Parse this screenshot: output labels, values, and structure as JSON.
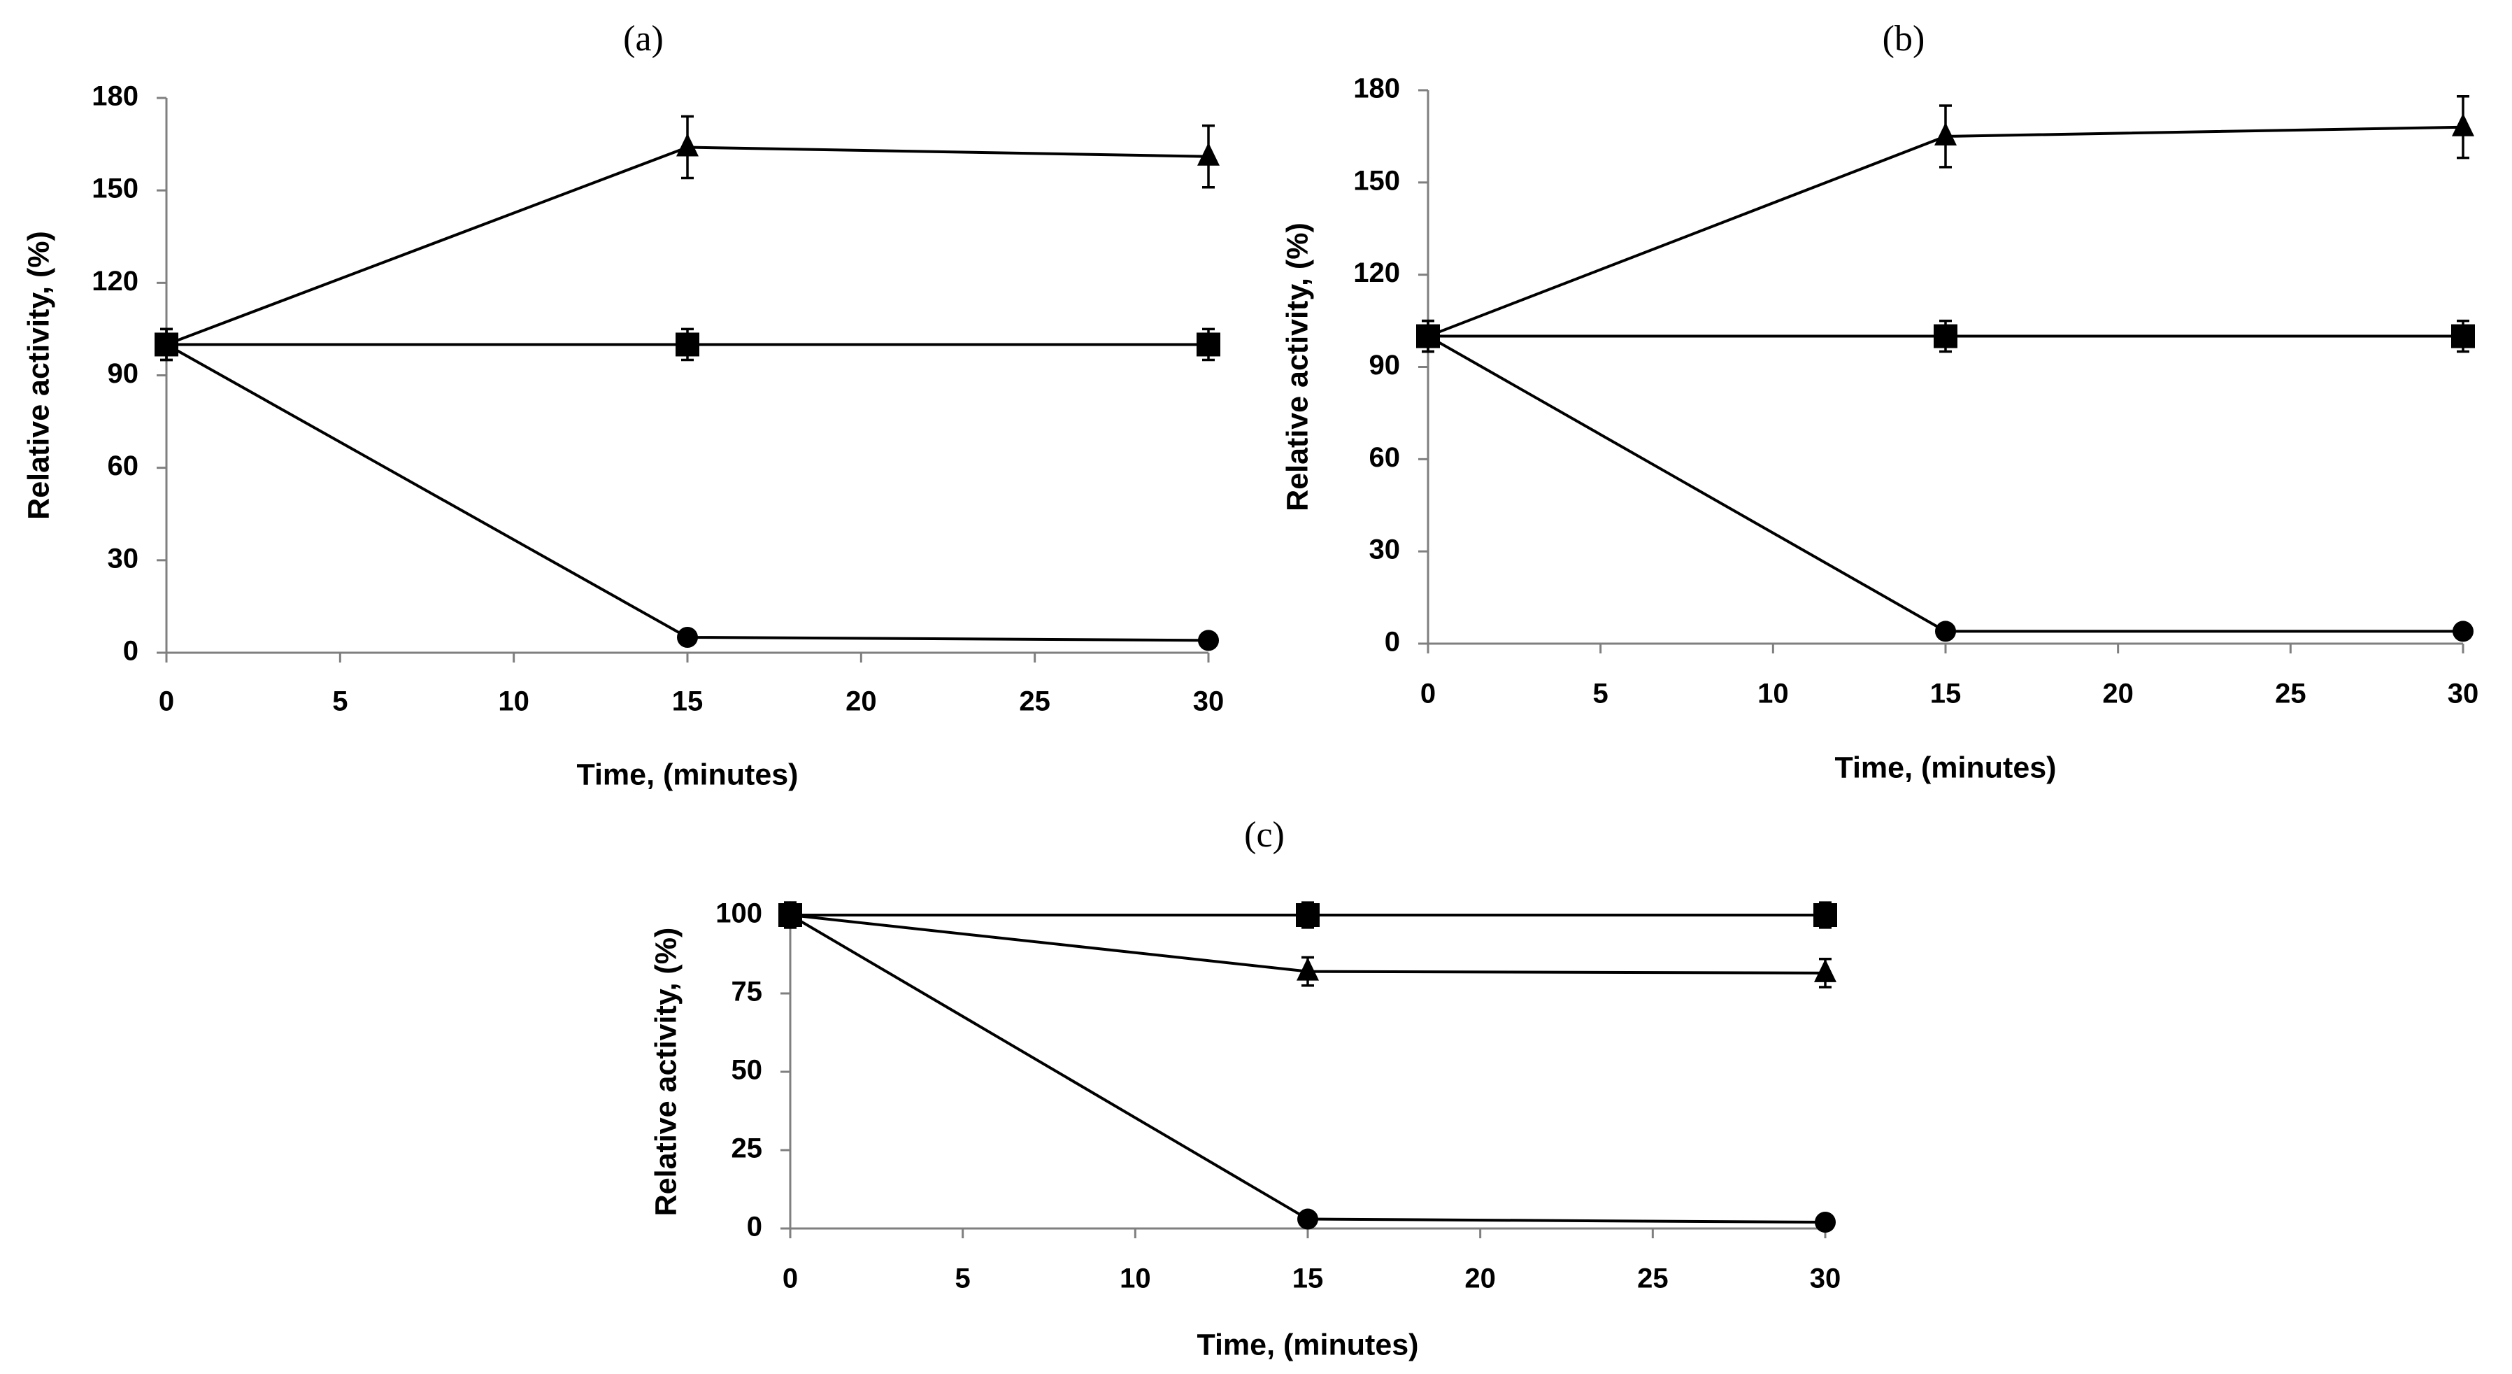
{
  "figure": {
    "description_free": true
  },
  "chart_data": [
    {
      "type": "line",
      "panel_label": "(a)",
      "xlabel": "Time, (minutes)",
      "ylabel": "Relative activity, (%)",
      "xlim": [
        0,
        30
      ],
      "ylim": [
        0,
        180
      ],
      "xticks": [
        0,
        5,
        10,
        15,
        20,
        25,
        30
      ],
      "yticks": [
        0,
        30,
        60,
        90,
        120,
        150,
        180
      ],
      "series": [
        {
          "name": "triangle",
          "marker": "triangle",
          "x": [
            0,
            15,
            30
          ],
          "y": [
            100,
            164,
            161
          ],
          "err": [
            5,
            10,
            10
          ]
        },
        {
          "name": "square",
          "marker": "square",
          "x": [
            0,
            15,
            30
          ],
          "y": [
            100,
            100,
            100
          ],
          "err": [
            5,
            5,
            5
          ]
        },
        {
          "name": "circle",
          "marker": "circle",
          "x": [
            0,
            15,
            30
          ],
          "y": [
            100,
            5,
            4
          ],
          "err": [
            0,
            0,
            0
          ]
        }
      ]
    },
    {
      "type": "line",
      "panel_label": "(b)",
      "xlabel": "Time, (minutes)",
      "ylabel": "Relative activity, (%)",
      "xlim": [
        0,
        30
      ],
      "ylim": [
        0,
        180
      ],
      "xticks": [
        0,
        5,
        10,
        15,
        20,
        25,
        30
      ],
      "yticks": [
        0,
        30,
        60,
        90,
        120,
        150,
        180
      ],
      "series": [
        {
          "name": "triangle",
          "marker": "triangle",
          "x": [
            0,
            15,
            30
          ],
          "y": [
            100,
            165,
            168
          ],
          "err": [
            5,
            10,
            10
          ]
        },
        {
          "name": "square",
          "marker": "square",
          "x": [
            0,
            15,
            30
          ],
          "y": [
            100,
            100,
            100
          ],
          "err": [
            5,
            5,
            5
          ]
        },
        {
          "name": "circle",
          "marker": "circle",
          "x": [
            0,
            15,
            30
          ],
          "y": [
            100,
            4,
            4
          ],
          "err": [
            0,
            0,
            0
          ]
        }
      ]
    },
    {
      "type": "line",
      "panel_label": "(c)",
      "xlabel": "Time, (minutes)",
      "ylabel": "Relative activity, (%)",
      "xlim": [
        0,
        30
      ],
      "ylim": [
        0,
        100
      ],
      "xticks": [
        0,
        5,
        10,
        15,
        20,
        25,
        30
      ],
      "yticks": [
        0,
        25,
        50,
        75,
        100
      ],
      "series": [
        {
          "name": "square",
          "marker": "square",
          "x": [
            0,
            15,
            30
          ],
          "y": [
            100,
            100,
            100
          ],
          "err": [
            4,
            4,
            4
          ]
        },
        {
          "name": "triangle",
          "marker": "triangle",
          "x": [
            0,
            15,
            30
          ],
          "y": [
            100,
            82,
            81.5
          ],
          "err": [
            4,
            4.5,
            4.5
          ]
        },
        {
          "name": "circle",
          "marker": "circle",
          "x": [
            0,
            15,
            30
          ],
          "y": [
            100,
            3,
            2
          ],
          "err": [
            0,
            0,
            0
          ]
        }
      ]
    }
  ]
}
